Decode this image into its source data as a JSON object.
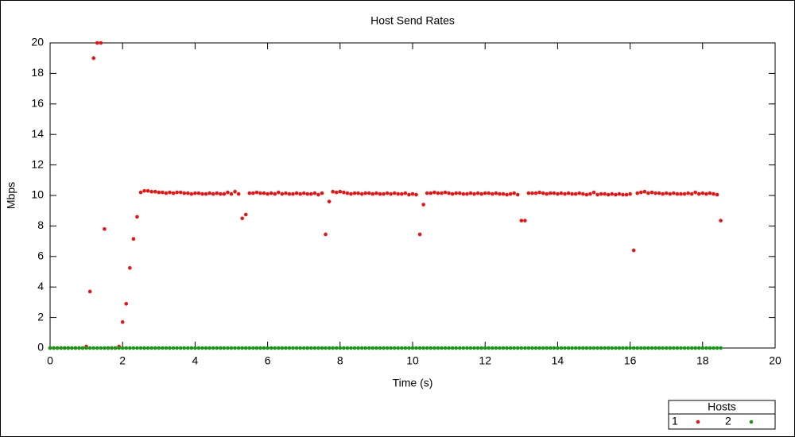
{
  "chart_data": {
    "type": "scatter",
    "title": "Host Send Rates",
    "x_label": "Time (s)",
    "y_label": "Mbps",
    "legend_title": "Hosts",
    "legend_position": "bottom-right",
    "xlim": [
      0,
      20
    ],
    "xticks": [
      0,
      2,
      4,
      6,
      8,
      10,
      12,
      14,
      16,
      18,
      20
    ],
    "ylim": [
      0,
      20
    ],
    "yticks": [
      0,
      2,
      4,
      6,
      8,
      10,
      12,
      14,
      16,
      18,
      20
    ],
    "x": [
      0,
      0.1,
      0.2,
      0.3,
      0.4,
      0.5,
      0.6,
      0.7,
      0.8,
      0.9,
      1,
      1.1,
      1.2,
      1.3,
      1.4,
      1.5,
      1.6,
      1.7,
      1.8,
      1.9,
      2,
      2.1,
      2.2,
      2.3,
      2.4,
      2.5,
      2.6,
      2.7,
      2.8,
      2.9,
      3,
      3.1,
      3.2,
      3.3,
      3.4,
      3.5,
      3.6,
      3.7,
      3.8,
      3.9,
      4,
      4.1,
      4.2,
      4.3,
      4.4,
      4.5,
      4.6,
      4.7,
      4.8,
      4.9,
      5,
      5.1,
      5.2,
      5.3,
      5.4,
      5.5,
      5.6,
      5.7,
      5.8,
      5.9,
      6,
      6.1,
      6.2,
      6.3,
      6.4,
      6.5,
      6.6,
      6.7,
      6.8,
      6.9,
      7,
      7.1,
      7.2,
      7.3,
      7.4,
      7.5,
      7.6,
      7.7,
      7.8,
      7.9,
      8,
      8.1,
      8.2,
      8.3,
      8.4,
      8.5,
      8.6,
      8.7,
      8.8,
      8.9,
      9,
      9.1,
      9.2,
      9.3,
      9.4,
      9.5,
      9.6,
      9.7,
      9.8,
      9.9,
      10,
      10.1,
      10.2,
      10.3,
      10.4,
      10.5,
      10.6,
      10.7,
      10.8,
      10.9,
      11,
      11.1,
      11.2,
      11.3,
      11.4,
      11.5,
      11.6,
      11.7,
      11.8,
      11.9,
      12,
      12.1,
      12.2,
      12.3,
      12.4,
      12.5,
      12.6,
      12.7,
      12.8,
      12.9,
      13,
      13.1,
      13.2,
      13.3,
      13.4,
      13.5,
      13.6,
      13.7,
      13.8,
      13.9,
      14,
      14.1,
      14.2,
      14.3,
      14.4,
      14.5,
      14.6,
      14.7,
      14.8,
      14.9,
      15,
      15.1,
      15.2,
      15.3,
      15.4,
      15.5,
      15.6,
      15.7,
      15.8,
      15.9,
      16,
      16.1,
      16.2,
      16.3,
      16.4,
      16.5,
      16.6,
      16.7,
      16.8,
      16.9,
      17,
      17.1,
      17.2,
      17.3,
      17.4,
      17.5,
      17.6,
      17.7,
      17.8,
      17.9,
      18,
      18.1,
      18.2,
      18.3,
      18.4,
      18.5
    ],
    "series": [
      {
        "name": "1",
        "color": "#ee1111",
        "values": [
          0,
          0,
          0,
          0,
          0,
          0,
          0,
          0,
          0,
          0,
          0.1,
          3.7,
          19,
          20,
          20,
          7.8,
          0,
          0,
          0,
          0.1,
          1.7,
          2.9,
          5.25,
          7.15,
          8.6,
          10.2,
          10.3,
          10.3,
          10.25,
          10.25,
          10.2,
          10.2,
          10.15,
          10.2,
          10.15,
          10.2,
          10.2,
          10.15,
          10.15,
          10.1,
          10.15,
          10.15,
          10.1,
          10.1,
          10.15,
          10.1,
          10.15,
          10.1,
          10.1,
          10.2,
          10.1,
          10.25,
          10.1,
          8.5,
          8.75,
          10.15,
          10.15,
          10.2,
          10.15,
          10.15,
          10.1,
          10.15,
          10.1,
          10.2,
          10.1,
          10.15,
          10.1,
          10.1,
          10.15,
          10.1,
          10.15,
          10.1,
          10.1,
          10.15,
          10.05,
          10.15,
          7.45,
          9.6,
          10.25,
          10.2,
          10.25,
          10.2,
          10.15,
          10.1,
          10.15,
          10.15,
          10.1,
          10.15,
          10.15,
          10.1,
          10.15,
          10.1,
          10.1,
          10.15,
          10.1,
          10.15,
          10.1,
          10.1,
          10.15,
          10.05,
          10.1,
          10.05,
          7.45,
          9.4,
          10.15,
          10.15,
          10.2,
          10.15,
          10.15,
          10.2,
          10.15,
          10.1,
          10.15,
          10.15,
          10.1,
          10.1,
          10.15,
          10.1,
          10.15,
          10.1,
          10.15,
          10.15,
          10.1,
          10.15,
          10.1,
          10.1,
          10.05,
          10.1,
          10.15,
          10.05,
          8.35,
          8.35,
          10.15,
          10.15,
          10.15,
          10.2,
          10.15,
          10.1,
          10.15,
          10.15,
          10.1,
          10.15,
          10.1,
          10.15,
          10.1,
          10.1,
          10.15,
          10.1,
          10.05,
          10.1,
          10.2,
          10.05,
          10.1,
          10.1,
          10.05,
          10.1,
          10.05,
          10.1,
          10.05,
          10.05,
          10.1,
          6.4,
          10.15,
          10.2,
          10.25,
          10.15,
          10.2,
          10.15,
          10.15,
          10.1,
          10.15,
          10.1,
          10.15,
          10.1,
          10.1,
          10.1,
          10.15,
          10.1,
          10.2,
          10.1,
          10.15,
          10.1,
          10.15,
          10.1,
          10.05,
          8.35
        ]
      },
      {
        "name": "2",
        "color": "#119911",
        "values": [
          0,
          0,
          0,
          0,
          0,
          0,
          0,
          0,
          0,
          0,
          0,
          0,
          0,
          0,
          0,
          0,
          0,
          0,
          0,
          0,
          0,
          0,
          0,
          0,
          0,
          0,
          0,
          0,
          0,
          0,
          0,
          0,
          0,
          0,
          0,
          0,
          0,
          0,
          0,
          0,
          0,
          0,
          0,
          0,
          0,
          0,
          0,
          0,
          0,
          0,
          0,
          0,
          0,
          0,
          0,
          0,
          0,
          0,
          0,
          0,
          0,
          0,
          0,
          0,
          0,
          0,
          0,
          0,
          0,
          0,
          0,
          0,
          0,
          0,
          0,
          0,
          0,
          0,
          0,
          0,
          0,
          0,
          0,
          0,
          0,
          0,
          0,
          0,
          0,
          0,
          0,
          0,
          0,
          0,
          0,
          0,
          0,
          0,
          0,
          0,
          0,
          0,
          0,
          0,
          0,
          0,
          0,
          0,
          0,
          0,
          0,
          0,
          0,
          0,
          0,
          0,
          0,
          0,
          0,
          0,
          0,
          0,
          0,
          0,
          0,
          0,
          0,
          0,
          0,
          0,
          0,
          0,
          0,
          0,
          0,
          0,
          0,
          0,
          0,
          0,
          0,
          0,
          0,
          0,
          0,
          0,
          0,
          0,
          0,
          0,
          0,
          0,
          0,
          0,
          0,
          0,
          0,
          0,
          0,
          0,
          0,
          0,
          0,
          0,
          0,
          0,
          0,
          0,
          0,
          0,
          0,
          0,
          0,
          0,
          0,
          0,
          0,
          0,
          0,
          0,
          0,
          0,
          0,
          0,
          0,
          0
        ]
      }
    ]
  }
}
